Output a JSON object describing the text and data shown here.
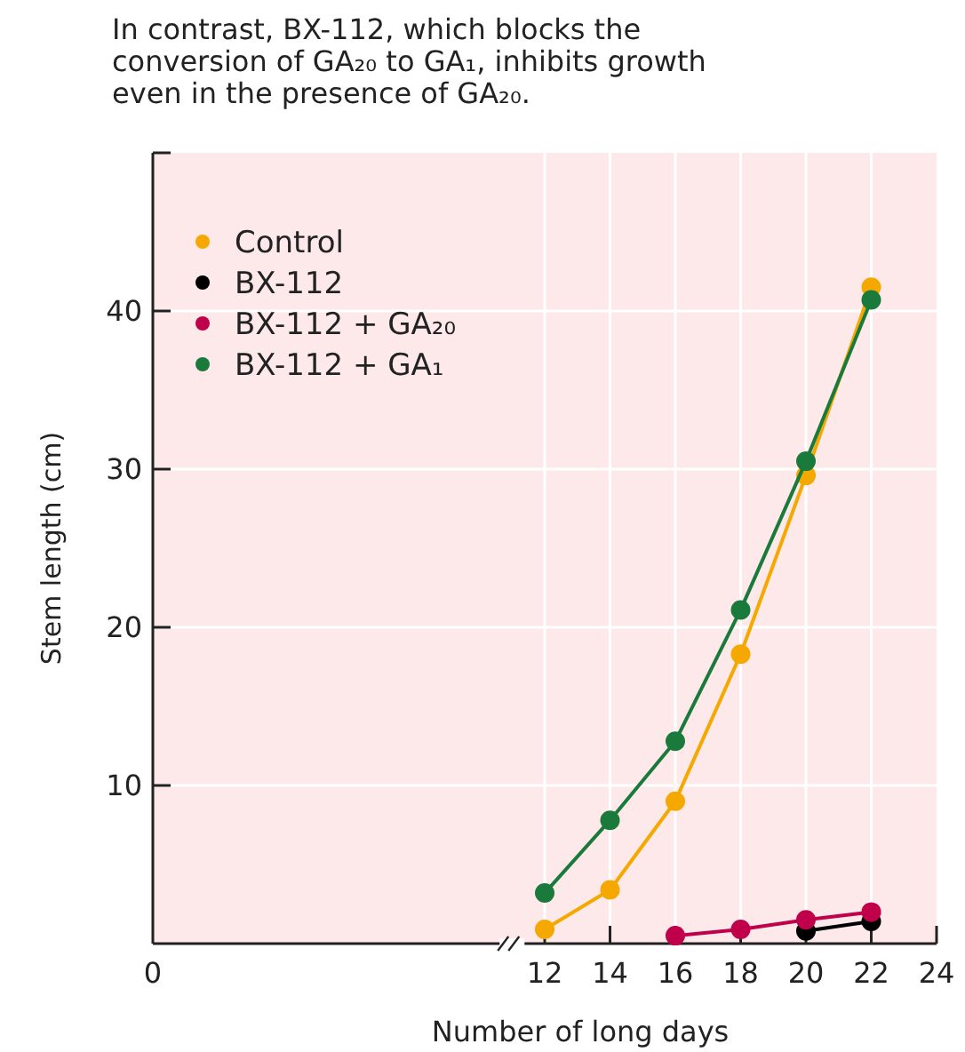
{
  "chart_data": {
    "type": "line",
    "title": "In contrast, BX-112, which blocks the conversion of GA₂₀ to GA₁, inhibits growth even in the presence of GA₂₀.",
    "xlabel": "Number of long days",
    "ylabel": "Stem length (cm)",
    "xlim": [
      0,
      24
    ],
    "xticks": [
      0,
      12,
      14,
      16,
      18,
      20,
      22,
      24
    ],
    "ylim": [
      0,
      50
    ],
    "yticks": [
      10,
      20,
      30,
      40
    ],
    "grid": true,
    "legend": "top left",
    "marker": "circle",
    "line_style": "solid",
    "series": [
      {
        "name": "Control",
        "color": "#f5a800",
        "x": [
          12,
          14,
          16,
          18,
          20,
          22
        ],
        "values": [
          0.9,
          3.4,
          9.0,
          18.3,
          29.6,
          41.5
        ]
      },
      {
        "name": "BX-112",
        "color": "#000000",
        "x": [
          20,
          22
        ],
        "values": [
          0.8,
          1.4
        ]
      },
      {
        "name": "BX-112 + GA₂₀",
        "color": "#c0004a",
        "x": [
          16,
          18,
          20,
          22
        ],
        "values": [
          0.5,
          0.9,
          1.5,
          2.0
        ]
      },
      {
        "name": "BX-112 + GA₁",
        "color": "#1a7a3c",
        "x": [
          12,
          14,
          16,
          18,
          20,
          22
        ],
        "values": [
          3.2,
          7.8,
          12.8,
          21.1,
          30.5,
          40.7
        ]
      }
    ]
  }
}
